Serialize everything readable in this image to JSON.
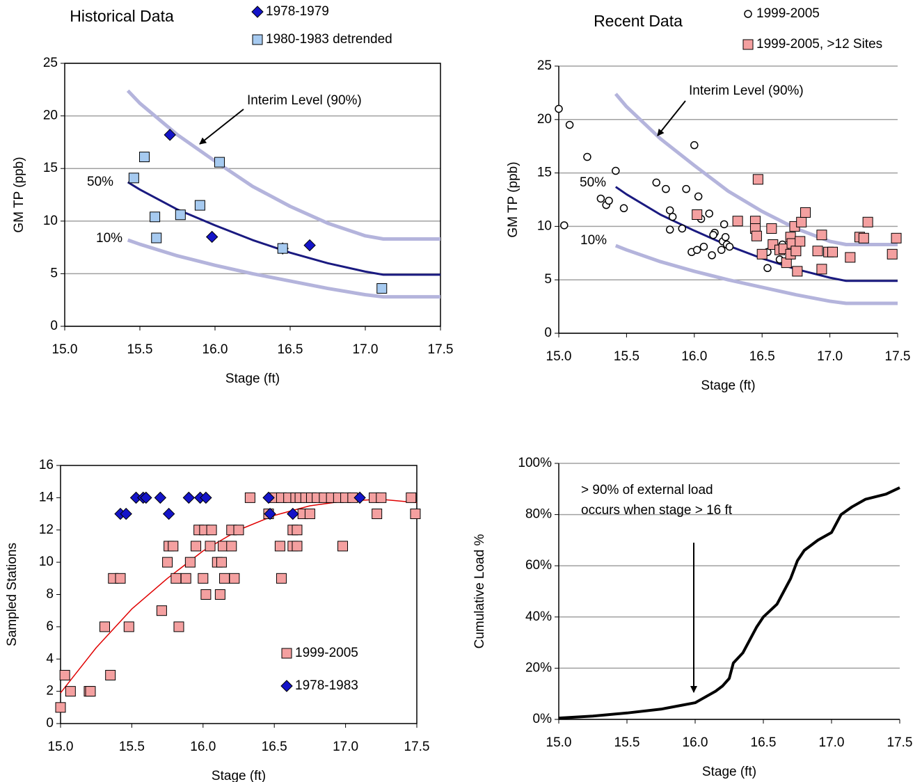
{
  "chart_data": [
    {
      "type": "scatter",
      "title": "Historical Data",
      "xlabel": "Stage (ft)",
      "ylabel": "GM TP (ppb)",
      "xlim": [
        15,
        17.5
      ],
      "ylim": [
        0,
        25
      ],
      "xticks": [
        {
          "value": 15,
          "label": "15.0"
        },
        {
          "value": 15.5,
          "label": "15.5"
        },
        {
          "value": 16,
          "label": "16.0"
        },
        {
          "value": 16.5,
          "label": "16.5"
        },
        {
          "value": 17,
          "label": "17.0"
        },
        {
          "value": 17.5,
          "label": "17.5"
        }
      ],
      "yticks": [
        0,
        5,
        10,
        15,
        20,
        25
      ],
      "grid": true,
      "annotations": [
        "Interim Level (90%)"
      ],
      "series": [
        {
          "mode": "line",
          "color": "#b4b4dc",
          "x": [
            15.42,
            15.5,
            15.75,
            16.0,
            16.25,
            16.5,
            16.75,
            17.0,
            17.12,
            17.5
          ],
          "values": [
            22.4,
            21.2,
            18.2,
            15.7,
            13.3,
            11.4,
            9.8,
            8.6,
            8.3,
            8.3
          ]
        },
        {
          "name": "50%",
          "mode": "line",
          "color": "#1a1a80",
          "x": [
            15.42,
            15.5,
            15.75,
            16.0,
            16.25,
            16.5,
            16.75,
            17.0,
            17.12,
            17.5
          ],
          "values": [
            13.7,
            13.0,
            11.1,
            9.6,
            8.2,
            7.0,
            6.0,
            5.2,
            4.9,
            4.9
          ]
        },
        {
          "name": "10%",
          "mode": "line",
          "color": "#b4b4dc",
          "x": [
            15.42,
            15.5,
            15.75,
            16.0,
            16.25,
            16.5,
            16.75,
            17.0,
            17.12,
            17.5
          ],
          "values": [
            8.2,
            7.8,
            6.7,
            5.8,
            5.0,
            4.3,
            3.6,
            3.0,
            2.8,
            2.8
          ]
        },
        {
          "name": "1978-1979",
          "marker": "diamond",
          "color": "#1414c8",
          "x": [
            15.7,
            15.98,
            16.45,
            16.63
          ],
          "values": [
            18.2,
            8.5,
            7.4,
            7.7
          ]
        },
        {
          "name": "1980-1983 detrended",
          "marker": "square",
          "color": "#a6caf0",
          "x": [
            15.46,
            15.53,
            15.6,
            15.61,
            15.77,
            15.9,
            16.03,
            16.45,
            17.11
          ],
          "values": [
            14.1,
            16.1,
            10.4,
            8.4,
            10.6,
            11.5,
            15.6,
            7.4,
            3.6
          ]
        }
      ]
    },
    {
      "type": "scatter",
      "title": "Recent Data",
      "xlabel": "Stage (ft)",
      "ylabel": "GM TP (ppb)",
      "xlim": [
        15,
        17.5
      ],
      "ylim": [
        0,
        25
      ],
      "xticks": [
        {
          "value": 15,
          "label": "15.0"
        },
        {
          "value": 15.5,
          "label": "15.5"
        },
        {
          "value": 16,
          "label": "16.0"
        },
        {
          "value": 16.5,
          "label": "16.5"
        },
        {
          "value": 17,
          "label": "17.0"
        },
        {
          "value": 17.5,
          "label": "17.5"
        }
      ],
      "yticks": [
        0,
        5,
        10,
        15,
        20,
        25
      ],
      "grid": true,
      "annotations": [
        "Interim Level (90%)"
      ],
      "series": [
        {
          "mode": "line",
          "color": "#b4b4dc",
          "x": [
            15.42,
            15.5,
            15.75,
            16.0,
            16.25,
            16.5,
            16.75,
            17.0,
            17.12,
            17.5
          ],
          "values": [
            22.4,
            21.2,
            18.2,
            15.7,
            13.3,
            11.4,
            9.8,
            8.6,
            8.3,
            8.3
          ]
        },
        {
          "name": "50%",
          "mode": "line",
          "color": "#1a1a80",
          "x": [
            15.42,
            15.5,
            15.75,
            16.0,
            16.25,
            16.5,
            16.75,
            17.0,
            17.12,
            17.5
          ],
          "values": [
            13.7,
            13.0,
            11.1,
            9.6,
            8.2,
            7.0,
            6.0,
            5.2,
            4.9,
            4.9
          ]
        },
        {
          "name": "10%",
          "mode": "line",
          "color": "#b4b4dc",
          "x": [
            15.42,
            15.5,
            15.75,
            16.0,
            16.25,
            16.5,
            16.75,
            17.0,
            17.12,
            17.5
          ],
          "values": [
            8.2,
            7.8,
            6.7,
            5.8,
            5.0,
            4.3,
            3.6,
            3.0,
            2.8,
            2.8
          ]
        },
        {
          "name": "1999-2005",
          "marker": "circle",
          "color": "#000000",
          "x": [
            15.0,
            15.08,
            15.04,
            15.21,
            15.31,
            15.35,
            15.37,
            15.42,
            15.48,
            15.72,
            15.79,
            15.82,
            15.84,
            15.82,
            15.91,
            15.94,
            16.0,
            16.03,
            15.98,
            16.02,
            16.07,
            16.05,
            16.11,
            16.13,
            16.15,
            16.14,
            16.2,
            16.21,
            16.22,
            16.23,
            16.24,
            16.26,
            16.54,
            16.54,
            16.63,
            16.65
          ],
          "values": [
            21.0,
            19.5,
            10.1,
            16.5,
            12.6,
            12.0,
            12.4,
            15.2,
            11.7,
            14.1,
            13.5,
            11.5,
            10.9,
            9.7,
            9.8,
            13.5,
            17.6,
            12.8,
            7.6,
            7.8,
            8.1,
            10.7,
            11.2,
            7.3,
            9.4,
            9.2,
            7.8,
            8.6,
            10.2,
            9.0,
            8.3,
            8.1,
            7.6,
            6.1,
            6.9,
            8.3
          ]
        },
        {
          "name": "1999-2005, >12 Sites",
          "marker": "square",
          "color": "#f4a0a0",
          "x": [
            16.47,
            16.32,
            16.45,
            16.45,
            16.46,
            16.02,
            16.5,
            16.57,
            16.58,
            16.63,
            16.66,
            16.68,
            16.71,
            16.72,
            16.71,
            16.75,
            16.74,
            16.76,
            16.78,
            16.79,
            16.82,
            16.91,
            16.94,
            16.94,
            16.99,
            17.02,
            17.15,
            17.22,
            17.25,
            17.28,
            17.46,
            17.49
          ],
          "values": [
            14.4,
            10.5,
            10.5,
            9.8,
            9.1,
            11.1,
            7.4,
            9.8,
            8.3,
            7.8,
            7.9,
            6.6,
            9.0,
            8.4,
            7.4,
            7.7,
            10.0,
            5.8,
            8.6,
            10.4,
            11.3,
            7.7,
            9.2,
            6.0,
            7.6,
            7.6,
            7.1,
            9.0,
            8.9,
            10.4,
            7.4,
            8.9
          ]
        }
      ]
    },
    {
      "type": "scatter",
      "xlabel": "Stage (ft)",
      "ylabel": "Sampled Stations",
      "xlim": [
        15,
        17.5
      ],
      "ylim": [
        0,
        16
      ],
      "xticks": [
        {
          "value": 15,
          "label": "15.0"
        },
        {
          "value": 15.5,
          "label": "15.5"
        },
        {
          "value": 16,
          "label": "16.0"
        },
        {
          "value": 16.5,
          "label": "16.5"
        },
        {
          "value": 17,
          "label": "17.0"
        },
        {
          "value": 17.5,
          "label": "17.5"
        }
      ],
      "yticks": [
        0,
        2,
        4,
        6,
        8,
        10,
        12,
        14,
        16
      ],
      "grid": false,
      "series": [
        {
          "mode": "line",
          "color": "#e00000",
          "x": [
            15.0,
            15.25,
            15.5,
            15.75,
            16.0,
            16.25,
            16.5,
            16.75,
            17.0,
            17.25,
            17.5
          ],
          "values": [
            1.9,
            4.7,
            7.1,
            9.0,
            10.7,
            12.0,
            12.9,
            13.5,
            13.8,
            13.9,
            13.7
          ]
        },
        {
          "name": "1999-2005",
          "marker": "square",
          "color": "#f4a0a0",
          "x": [
            15.0,
            15.03,
            15.07,
            15.2,
            15.21,
            15.31,
            15.35,
            15.37,
            15.42,
            15.48,
            15.71,
            15.75,
            15.76,
            15.79,
            15.81,
            15.83,
            15.88,
            15.91,
            15.95,
            15.97,
            16.0,
            16.01,
            16.02,
            16.05,
            16.06,
            16.1,
            16.12,
            16.13,
            16.14,
            16.15,
            16.2,
            16.2,
            16.22,
            16.25,
            16.33,
            16.46,
            16.5,
            16.54,
            16.55,
            16.55,
            16.6,
            16.63,
            16.63,
            16.65,
            16.66,
            16.66,
            16.68,
            16.7,
            16.72,
            16.75,
            16.76,
            16.8,
            16.85,
            16.9,
            16.95,
            16.98,
            17.0,
            17.05,
            17.2,
            17.22,
            17.25,
            17.46,
            17.49
          ],
          "values": [
            1,
            3,
            2,
            2,
            2,
            6,
            3,
            9,
            9,
            6,
            7,
            10,
            11,
            11,
            9,
            6,
            9,
            10,
            11,
            12,
            9,
            12,
            8,
            11,
            12,
            10,
            8,
            10,
            11,
            9,
            11,
            12,
            9,
            12,
            14,
            13,
            14,
            11,
            9,
            14,
            14,
            12,
            11,
            14,
            12,
            11,
            14,
            13,
            14,
            13,
            14,
            14,
            14,
            14,
            14,
            11,
            14,
            14,
            14,
            13,
            14,
            14,
            13
          ]
        },
        {
          "name": "1978-1983",
          "marker": "diamond",
          "color": "#1414c8",
          "x": [
            15.42,
            15.46,
            15.53,
            15.58,
            15.6,
            15.7,
            15.76,
            15.9,
            15.98,
            16.02,
            16.46,
            16.47,
            16.63,
            17.1
          ],
          "values": [
            13,
            13,
            14,
            14,
            14,
            14,
            13,
            14,
            14,
            14,
            14,
            13,
            13,
            14
          ]
        }
      ]
    },
    {
      "type": "line",
      "xlabel": "Stage (ft)",
      "ylabel": "Cumulative Load %",
      "xlim": [
        15,
        17.5
      ],
      "ylim": [
        0,
        100
      ],
      "xticks": [
        {
          "value": 15,
          "label": "15.0"
        },
        {
          "value": 15.5,
          "label": "15.5"
        },
        {
          "value": 16,
          "label": "16.0"
        },
        {
          "value": 16.5,
          "label": "16.5"
        },
        {
          "value": 17,
          "label": "17.0"
        },
        {
          "value": 17.5,
          "label": "17.5"
        }
      ],
      "yticks": [
        {
          "value": 0,
          "label": "0%"
        },
        {
          "value": 20,
          "label": "20%"
        },
        {
          "value": 40,
          "label": "40%"
        },
        {
          "value": 60,
          "label": "60%"
        },
        {
          "value": 80,
          "label": "80%"
        },
        {
          "value": 100,
          "label": "100%"
        }
      ],
      "grid": true,
      "annotations": [
        "> 90% of external load",
        "occurs when stage > 16 ft"
      ],
      "series": [
        {
          "mode": "line",
          "color": "#000000",
          "x": [
            15.0,
            15.25,
            15.5,
            15.75,
            15.9,
            16.0,
            16.05,
            16.15,
            16.2,
            16.25,
            16.28,
            16.35,
            16.4,
            16.45,
            16.5,
            16.6,
            16.65,
            16.7,
            16.75,
            16.8,
            16.9,
            17.0,
            17.07,
            17.15,
            17.25,
            17.4,
            17.5
          ],
          "values": [
            0.5,
            1.3,
            2.5,
            4,
            5.5,
            6.5,
            8,
            11,
            13,
            16,
            22,
            26,
            31,
            36,
            40,
            45,
            50,
            55,
            62,
            66,
            70,
            73,
            80,
            83,
            86,
            88,
            90.5
          ]
        }
      ]
    }
  ]
}
